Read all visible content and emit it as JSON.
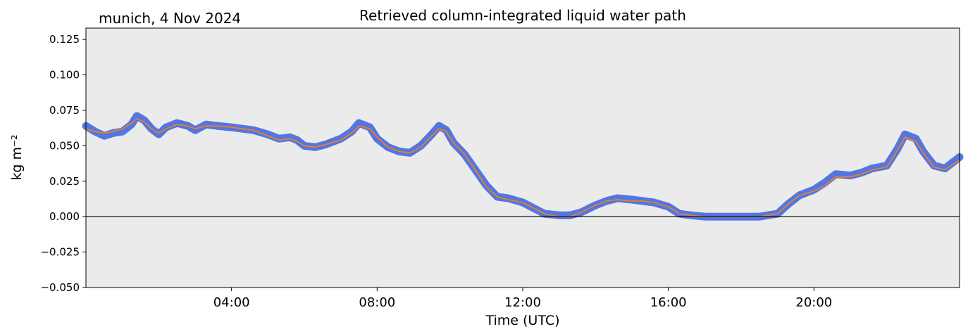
{
  "chart_data": {
    "type": "line",
    "title": "Retrieved column-integrated liquid water path",
    "subtitle": "munich, 4 Nov 2024",
    "xlabel": "Time (UTC)",
    "ylabel": "kg m⁻²",
    "xlim": [
      0,
      24
    ],
    "ylim": [
      -0.05,
      0.133
    ],
    "x_tick_labels": [
      "04:00",
      "08:00",
      "12:00",
      "16:00",
      "20:00"
    ],
    "x_tick_values": [
      4,
      8,
      12,
      16,
      20
    ],
    "y_tick_labels": [
      "−0.050",
      "−0.025",
      "0.000",
      "0.025",
      "0.050",
      "0.075",
      "0.100",
      "0.125"
    ],
    "y_tick_values": [
      -0.05,
      -0.025,
      0.0,
      0.025,
      0.05,
      0.075,
      0.1,
      0.125
    ],
    "zero_line": 0.0,
    "background": "#ebebeb",
    "grid": false,
    "series": [
      {
        "kind": "raw",
        "color": "#4169e1",
        "x": [
          0.0,
          0.25,
          0.5,
          0.75,
          1.0,
          1.25,
          1.4,
          1.6,
          1.8,
          2.0,
          2.2,
          2.5,
          2.8,
          3.0,
          3.3,
          3.6,
          4.0,
          4.3,
          4.6,
          5.0,
          5.3,
          5.6,
          5.8,
          6.0,
          6.3,
          6.6,
          7.0,
          7.3,
          7.5,
          7.8,
          8.0,
          8.3,
          8.6,
          8.9,
          9.2,
          9.5,
          9.7,
          9.9,
          10.1,
          10.4,
          10.7,
          11.0,
          11.3,
          11.6,
          12.0,
          12.3,
          12.6,
          13.0,
          13.3,
          13.6,
          14.0,
          14.3,
          14.6,
          15.0,
          15.3,
          15.6,
          16.0,
          16.3,
          16.6,
          17.0,
          17.5,
          18.0,
          18.5,
          19.0,
          19.3,
          19.6,
          20.0,
          20.3,
          20.6,
          21.0,
          21.3,
          21.6,
          22.0,
          22.3,
          22.5,
          22.8,
          23.0,
          23.3,
          23.6,
          24.0
        ],
        "y": [
          0.064,
          0.06,
          0.057,
          0.059,
          0.06,
          0.065,
          0.071,
          0.068,
          0.062,
          0.058,
          0.063,
          0.066,
          0.064,
          0.061,
          0.065,
          0.064,
          0.063,
          0.062,
          0.061,
          0.058,
          0.055,
          0.056,
          0.054,
          0.05,
          0.049,
          0.051,
          0.055,
          0.06,
          0.066,
          0.063,
          0.055,
          0.049,
          0.046,
          0.045,
          0.05,
          0.058,
          0.064,
          0.061,
          0.052,
          0.044,
          0.033,
          0.022,
          0.014,
          0.013,
          0.01,
          0.006,
          0.002,
          0.001,
          0.001,
          0.003,
          0.008,
          0.011,
          0.013,
          0.012,
          0.011,
          0.01,
          0.007,
          0.002,
          0.001,
          0.0,
          0.0,
          0.0,
          0.0,
          0.002,
          0.009,
          0.015,
          0.019,
          0.024,
          0.03,
          0.029,
          0.031,
          0.034,
          0.036,
          0.048,
          0.058,
          0.055,
          0.046,
          0.036,
          0.034,
          0.042
        ]
      },
      {
        "kind": "smoothed",
        "color": "#ff7f0e",
        "x": [
          0.0,
          0.25,
          0.5,
          0.75,
          1.0,
          1.25,
          1.4,
          1.6,
          1.8,
          2.0,
          2.2,
          2.5,
          2.8,
          3.0,
          3.3,
          3.6,
          4.0,
          4.3,
          4.6,
          5.0,
          5.3,
          5.6,
          5.8,
          6.0,
          6.3,
          6.6,
          7.0,
          7.3,
          7.5,
          7.8,
          8.0,
          8.3,
          8.6,
          8.9,
          9.2,
          9.5,
          9.7,
          9.9,
          10.1,
          10.4,
          10.7,
          11.0,
          11.3,
          11.6,
          12.0,
          12.3,
          12.6,
          13.0,
          13.3,
          13.6,
          14.0,
          14.3,
          14.6,
          15.0,
          15.3,
          15.6,
          16.0,
          16.3,
          16.6,
          17.0,
          17.5,
          18.0,
          18.5,
          19.0,
          19.3,
          19.6,
          20.0,
          20.3,
          20.6,
          21.0,
          21.3,
          21.6,
          22.0,
          22.3,
          22.5,
          22.8,
          23.0,
          23.3,
          23.6,
          24.0
        ],
        "y": [
          0.062,
          0.06,
          0.059,
          0.06,
          0.062,
          0.066,
          0.069,
          0.067,
          0.062,
          0.059,
          0.062,
          0.065,
          0.064,
          0.062,
          0.064,
          0.064,
          0.063,
          0.062,
          0.061,
          0.057,
          0.054,
          0.055,
          0.053,
          0.05,
          0.049,
          0.051,
          0.054,
          0.059,
          0.064,
          0.062,
          0.056,
          0.049,
          0.046,
          0.045,
          0.049,
          0.057,
          0.062,
          0.06,
          0.052,
          0.044,
          0.033,
          0.021,
          0.014,
          0.012,
          0.01,
          0.006,
          0.002,
          0.0,
          0.0,
          0.003,
          0.008,
          0.011,
          0.012,
          0.011,
          0.011,
          0.01,
          0.007,
          0.002,
          0.001,
          0.0,
          0.0,
          0.0,
          0.0,
          0.002,
          0.009,
          0.015,
          0.018,
          0.022,
          0.028,
          0.028,
          0.03,
          0.033,
          0.035,
          0.047,
          0.056,
          0.053,
          0.045,
          0.035,
          0.033,
          0.04
        ]
      }
    ]
  }
}
